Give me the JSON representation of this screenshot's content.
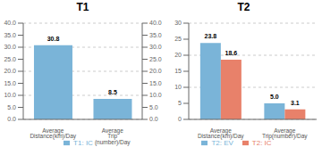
{
  "chart_data": [
    {
      "type": "bar",
      "title": "T1",
      "categories": [
        "Average Distance(km)/Day",
        "Average Trip (number)/Day"
      ],
      "series": [
        {
          "name": "T1: IC",
          "color": "#7ab4d8",
          "values": [
            30.8,
            8.5
          ]
        }
      ],
      "ylim": [
        0,
        40
      ],
      "yticks": [
        {
          "value": 0,
          "label": "0.0"
        },
        {
          "value": 5,
          "label": "5.0"
        },
        {
          "value": 10,
          "label": "10.0"
        },
        {
          "value": 15,
          "label": "15.0"
        },
        {
          "value": 20,
          "label": "20.0"
        },
        {
          "value": 25,
          "label": "25.0"
        },
        {
          "value": 30,
          "label": "30.0"
        },
        {
          "value": 35,
          "label": "35.0"
        },
        {
          "value": 40,
          "label": "40.0"
        }
      ],
      "y2lim": [
        0,
        40
      ],
      "y2ticks": [
        {
          "value": 0,
          "label": "0.0"
        },
        {
          "value": 5,
          "label": "5.0"
        },
        {
          "value": 10,
          "label": "10.0"
        },
        {
          "value": 15,
          "label": "15.0"
        },
        {
          "value": 20,
          "label": "20.0"
        },
        {
          "value": 25,
          "label": "25.0"
        },
        {
          "value": 30,
          "label": "30.0"
        },
        {
          "value": 35,
          "label": "35.0"
        },
        {
          "value": 40,
          "label": "40.0"
        }
      ],
      "grid": true,
      "legend": "bottom",
      "data_labels": true
    },
    {
      "type": "bar",
      "title": "T2",
      "categories": [
        "Average Distance(km)/Day",
        "Average Trip(number)/Day"
      ],
      "series": [
        {
          "name": "T2: EV",
          "color": "#7ab4d8",
          "values": [
            23.8,
            5.0
          ],
          "value_labels": [
            "23.8",
            "5.0"
          ]
        },
        {
          "name": "T2: IC",
          "color": "#e8816a",
          "values": [
            18.6,
            3.1
          ]
        }
      ],
      "ylim": [
        0,
        30
      ],
      "yticks": [
        0,
        5,
        10,
        15,
        20,
        25,
        30
      ],
      "grid": true,
      "legend": "bottom",
      "data_labels": true
    }
  ]
}
